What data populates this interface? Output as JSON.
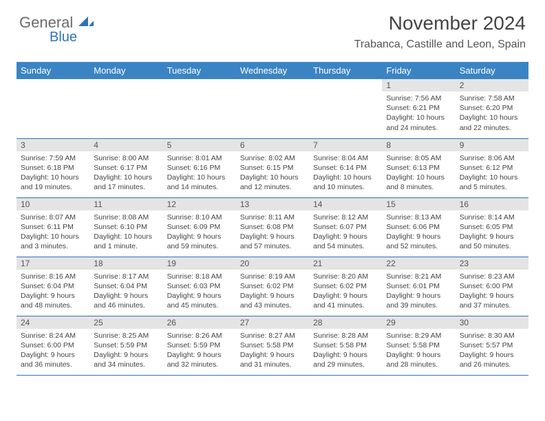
{
  "logo": {
    "word1": "General",
    "word2": "Blue"
  },
  "title": "November 2024",
  "location": "Trabanca, Castille and Leon, Spain",
  "header_bg": "#3b84c4",
  "daynum_bg": "#e4e4e4",
  "border_color": "#2d73b9",
  "day_headers": [
    "Sunday",
    "Monday",
    "Tuesday",
    "Wednesday",
    "Thursday",
    "Friday",
    "Saturday"
  ],
  "weeks": [
    [
      null,
      null,
      null,
      null,
      null,
      {
        "n": "1",
        "sunrise": "7:56 AM",
        "sunset": "6:21 PM",
        "daylight": "10 hours and 24 minutes."
      },
      {
        "n": "2",
        "sunrise": "7:58 AM",
        "sunset": "6:20 PM",
        "daylight": "10 hours and 22 minutes."
      }
    ],
    [
      {
        "n": "3",
        "sunrise": "7:59 AM",
        "sunset": "6:18 PM",
        "daylight": "10 hours and 19 minutes."
      },
      {
        "n": "4",
        "sunrise": "8:00 AM",
        "sunset": "6:17 PM",
        "daylight": "10 hours and 17 minutes."
      },
      {
        "n": "5",
        "sunrise": "8:01 AM",
        "sunset": "6:16 PM",
        "daylight": "10 hours and 14 minutes."
      },
      {
        "n": "6",
        "sunrise": "8:02 AM",
        "sunset": "6:15 PM",
        "daylight": "10 hours and 12 minutes."
      },
      {
        "n": "7",
        "sunrise": "8:04 AM",
        "sunset": "6:14 PM",
        "daylight": "10 hours and 10 minutes."
      },
      {
        "n": "8",
        "sunrise": "8:05 AM",
        "sunset": "6:13 PM",
        "daylight": "10 hours and 8 minutes."
      },
      {
        "n": "9",
        "sunrise": "8:06 AM",
        "sunset": "6:12 PM",
        "daylight": "10 hours and 5 minutes."
      }
    ],
    [
      {
        "n": "10",
        "sunrise": "8:07 AM",
        "sunset": "6:11 PM",
        "daylight": "10 hours and 3 minutes."
      },
      {
        "n": "11",
        "sunrise": "8:08 AM",
        "sunset": "6:10 PM",
        "daylight": "10 hours and 1 minute."
      },
      {
        "n": "12",
        "sunrise": "8:10 AM",
        "sunset": "6:09 PM",
        "daylight": "9 hours and 59 minutes."
      },
      {
        "n": "13",
        "sunrise": "8:11 AM",
        "sunset": "6:08 PM",
        "daylight": "9 hours and 57 minutes."
      },
      {
        "n": "14",
        "sunrise": "8:12 AM",
        "sunset": "6:07 PM",
        "daylight": "9 hours and 54 minutes."
      },
      {
        "n": "15",
        "sunrise": "8:13 AM",
        "sunset": "6:06 PM",
        "daylight": "9 hours and 52 minutes."
      },
      {
        "n": "16",
        "sunrise": "8:14 AM",
        "sunset": "6:05 PM",
        "daylight": "9 hours and 50 minutes."
      }
    ],
    [
      {
        "n": "17",
        "sunrise": "8:16 AM",
        "sunset": "6:04 PM",
        "daylight": "9 hours and 48 minutes."
      },
      {
        "n": "18",
        "sunrise": "8:17 AM",
        "sunset": "6:04 PM",
        "daylight": "9 hours and 46 minutes."
      },
      {
        "n": "19",
        "sunrise": "8:18 AM",
        "sunset": "6:03 PM",
        "daylight": "9 hours and 45 minutes."
      },
      {
        "n": "20",
        "sunrise": "8:19 AM",
        "sunset": "6:02 PM",
        "daylight": "9 hours and 43 minutes."
      },
      {
        "n": "21",
        "sunrise": "8:20 AM",
        "sunset": "6:02 PM",
        "daylight": "9 hours and 41 minutes."
      },
      {
        "n": "22",
        "sunrise": "8:21 AM",
        "sunset": "6:01 PM",
        "daylight": "9 hours and 39 minutes."
      },
      {
        "n": "23",
        "sunrise": "8:23 AM",
        "sunset": "6:00 PM",
        "daylight": "9 hours and 37 minutes."
      }
    ],
    [
      {
        "n": "24",
        "sunrise": "8:24 AM",
        "sunset": "6:00 PM",
        "daylight": "9 hours and 36 minutes."
      },
      {
        "n": "25",
        "sunrise": "8:25 AM",
        "sunset": "5:59 PM",
        "daylight": "9 hours and 34 minutes."
      },
      {
        "n": "26",
        "sunrise": "8:26 AM",
        "sunset": "5:59 PM",
        "daylight": "9 hours and 32 minutes."
      },
      {
        "n": "27",
        "sunrise": "8:27 AM",
        "sunset": "5:58 PM",
        "daylight": "9 hours and 31 minutes."
      },
      {
        "n": "28",
        "sunrise": "8:28 AM",
        "sunset": "5:58 PM",
        "daylight": "9 hours and 29 minutes."
      },
      {
        "n": "29",
        "sunrise": "8:29 AM",
        "sunset": "5:58 PM",
        "daylight": "9 hours and 28 minutes."
      },
      {
        "n": "30",
        "sunrise": "8:30 AM",
        "sunset": "5:57 PM",
        "daylight": "9 hours and 26 minutes."
      }
    ]
  ]
}
